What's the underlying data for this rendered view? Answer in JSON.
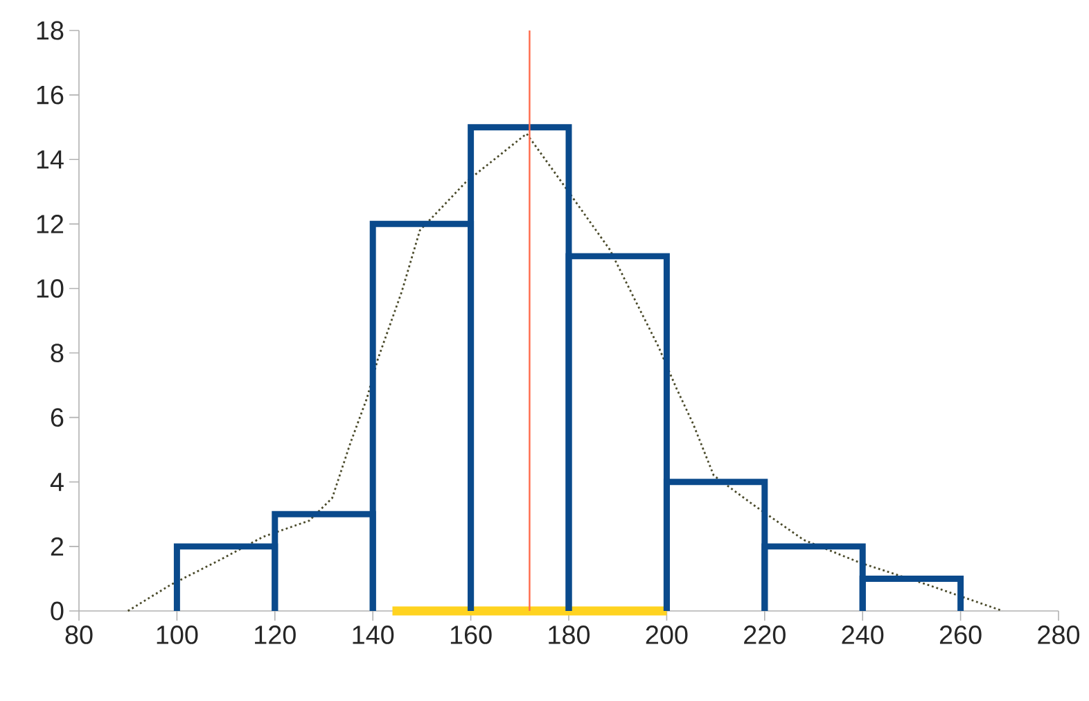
{
  "chart_data": {
    "type": "histogram",
    "bins": [
      100,
      120,
      140,
      160,
      180,
      200,
      220,
      240,
      260
    ],
    "values": [
      2,
      3,
      12,
      15,
      11,
      4,
      2,
      1
    ],
    "color": "#0a4a8c",
    "series": [
      {
        "type": "line",
        "color": "#4a4a2a",
        "line_style": "dotted",
        "x": [
          90,
          98.6,
          109,
          117.6,
          127,
          131.7,
          135.4,
          138.8,
          141,
          145.9,
          149.6,
          159,
          171.4,
          179,
          188.4,
          194,
          198.3,
          202,
          205.4,
          209.6,
          217.6,
          228,
          239.4,
          253.5,
          268.6
        ],
        "values": [
          0,
          0.8,
          1.6,
          2.3,
          2.8,
          3.5,
          5.2,
          6.6,
          7.8,
          9.9,
          11.8,
          13.3,
          14.8,
          13.2,
          11.2,
          9.5,
          8.2,
          6.9,
          5.8,
          4.2,
          3.3,
          2.2,
          1.5,
          0.8,
          0
        ]
      },
      {
        "type": "line",
        "color": "#ffd320",
        "line_style": "solid",
        "x": [
          144,
          200
        ],
        "values": [
          0,
          0
        ]
      }
    ],
    "ref_lines": [
      {
        "axis": "x",
        "value": 172,
        "color": "#ff6a4a"
      }
    ],
    "xlim": [
      80,
      280
    ],
    "xticks": [
      80,
      100,
      120,
      140,
      160,
      180,
      200,
      220,
      240,
      260,
      280
    ],
    "ylim": [
      0,
      18
    ],
    "yticks": [
      0,
      2,
      4,
      6,
      8,
      10,
      12,
      14,
      16,
      18
    ],
    "grid": false
  }
}
